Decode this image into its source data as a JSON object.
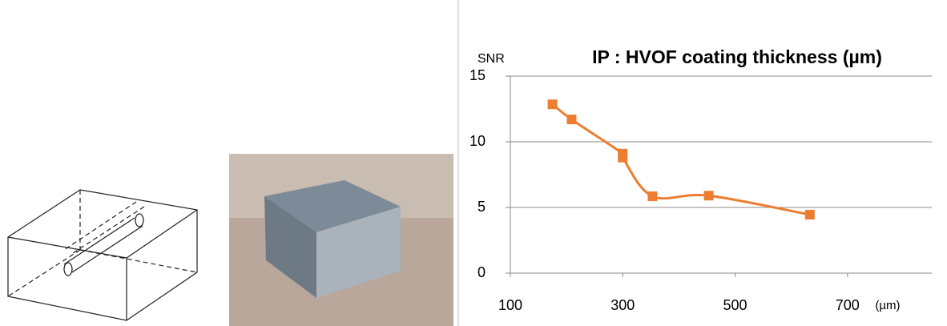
{
  "chart_data": {
    "type": "line",
    "title": "IP : HVOF coating thickness (µm)",
    "y_label": "SNR",
    "x_label": "(µm)",
    "x": [
      175,
      209,
      300,
      300,
      353,
      453,
      633
    ],
    "series": [
      {
        "name": "SNR",
        "color": "#ed7d31",
        "values": [
          12.85,
          11.7,
          9.1,
          8.8,
          5.85,
          5.9,
          4.45
        ]
      }
    ],
    "xlim": [
      100,
      850
    ],
    "xticks": [
      100,
      300,
      500,
      700
    ],
    "ylim": [
      0,
      15
    ],
    "yticks": [
      0,
      5,
      10,
      15
    ],
    "grid": true
  }
}
